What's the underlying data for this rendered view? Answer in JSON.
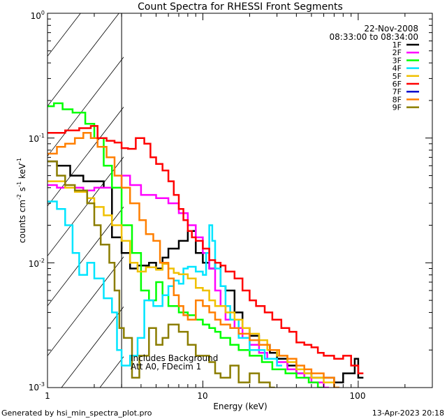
{
  "chart_data": {
    "type": "line",
    "title": "Count Spectra for RHESSI Front Segments",
    "xlabel": "Energy (keV)",
    "ylabel": "counts cm",
    "ylabel_parts": {
      "base": "counts cm",
      "exp1": "-2",
      "s": " s",
      "exp2": "-1",
      "kev": " keV",
      "exp3": "-1"
    },
    "xscale": "log",
    "yscale": "log",
    "xlim": [
      1,
      300
    ],
    "ylim": [
      0.001,
      1
    ],
    "x_ticks": [
      {
        "v": 1,
        "label": "1"
      },
      {
        "v": 10,
        "label": "10"
      },
      {
        "v": 100,
        "label": "100"
      }
    ],
    "y_ticks": [
      {
        "v": 1,
        "base": "10",
        "exp": "0"
      },
      {
        "v": 0.1,
        "base": "10",
        "exp": "-1"
      },
      {
        "v": 0.01,
        "base": "10",
        "exp": "-2"
      },
      {
        "v": 0.001,
        "base": "10",
        "exp": "-3"
      }
    ],
    "date": "22-Nov-2008",
    "time_range": "08:33:00 to 08:34:00",
    "attenuated_below_kev": 3,
    "annotation_lines": [
      "Includes Background",
      "Att A0, FDecim 1"
    ],
    "series": [
      {
        "name": "1F",
        "color": "#000000",
        "values": [
          [
            1,
            0.065
          ],
          [
            1.15,
            0.06
          ],
          [
            1.4,
            0.05
          ],
          [
            1.7,
            0.045
          ],
          [
            2,
            0.045
          ],
          [
            2.3,
            0.04
          ],
          [
            2.6,
            0.016
          ],
          [
            3,
            0.012
          ],
          [
            3.4,
            0.009
          ],
          [
            3.8,
            0.0095
          ],
          [
            4.5,
            0.01
          ],
          [
            5,
            0.009
          ],
          [
            5.5,
            0.011
          ],
          [
            6,
            0.013
          ],
          [
            7,
            0.015
          ],
          [
            8,
            0.018
          ],
          [
            9,
            0.012
          ],
          [
            10,
            0.01
          ],
          [
            11,
            0.009
          ],
          [
            12,
            0.01
          ],
          [
            13,
            0.0065
          ],
          [
            14,
            0.006
          ],
          [
            16,
            0.004
          ],
          [
            18,
            0.003
          ],
          [
            20,
            0.0026
          ],
          [
            23,
            0.0022
          ],
          [
            27,
            0.0019
          ],
          [
            30,
            0.0017
          ],
          [
            35,
            0.0015
          ],
          [
            40,
            0.0013
          ],
          [
            50,
            0.0012
          ],
          [
            60,
            0.0012
          ],
          [
            70,
            0.0011
          ],
          [
            80,
            0.0013
          ],
          [
            95,
            0.0017
          ],
          [
            100,
            0.0012
          ]
        ]
      },
      {
        "name": "2F",
        "color": "#ff00ff",
        "values": [
          [
            1,
            0.042
          ],
          [
            1.15,
            0.04
          ],
          [
            1.4,
            0.04
          ],
          [
            1.7,
            0.038
          ],
          [
            2,
            0.04
          ],
          [
            2.5,
            0.04
          ],
          [
            3,
            0.05
          ],
          [
            3.4,
            0.042
          ],
          [
            4,
            0.035
          ],
          [
            5,
            0.033
          ],
          [
            6,
            0.03
          ],
          [
            7,
            0.025
          ],
          [
            8,
            0.02
          ],
          [
            9,
            0.016
          ],
          [
            10,
            0.012
          ],
          [
            11,
            0.009
          ],
          [
            12,
            0.006
          ],
          [
            13,
            0.0045
          ],
          [
            14,
            0.0035
          ],
          [
            16,
            0.003
          ],
          [
            18,
            0.0025
          ],
          [
            20,
            0.0022
          ],
          [
            23,
            0.0019
          ],
          [
            26,
            0.0017
          ],
          [
            30,
            0.0016
          ],
          [
            35,
            0.0014
          ],
          [
            40,
            0.0013
          ],
          [
            45,
            0.0012
          ],
          [
            50,
            0.0011
          ],
          [
            60,
            0.001
          ]
        ]
      },
      {
        "name": "3F",
        "color": "#00ff00",
        "values": [
          [
            1,
            0.18
          ],
          [
            1.1,
            0.19
          ],
          [
            1.25,
            0.17
          ],
          [
            1.45,
            0.16
          ],
          [
            1.75,
            0.13
          ],
          [
            2,
            0.1
          ],
          [
            2.3,
            0.06
          ],
          [
            2.6,
            0.04
          ],
          [
            3,
            0.02
          ],
          [
            3.5,
            0.012
          ],
          [
            4,
            0.006
          ],
          [
            4.5,
            0.005
          ],
          [
            5,
            0.007
          ],
          [
            5.5,
            0.0055
          ],
          [
            6,
            0.0045
          ],
          [
            7,
            0.004
          ],
          [
            8,
            0.0038
          ],
          [
            9,
            0.0035
          ],
          [
            10,
            0.0032
          ],
          [
            11,
            0.003
          ],
          [
            12,
            0.0028
          ],
          [
            13,
            0.0025
          ],
          [
            15,
            0.0022
          ],
          [
            17,
            0.002
          ],
          [
            20,
            0.0018
          ],
          [
            24,
            0.0016
          ],
          [
            28,
            0.0014
          ],
          [
            34,
            0.0013
          ],
          [
            40,
            0.0012
          ],
          [
            48,
            0.0011
          ],
          [
            55,
            0.001
          ]
        ]
      },
      {
        "name": "4F",
        "color": "#00e5ff",
        "values": [
          [
            1,
            0.031
          ],
          [
            1.15,
            0.027
          ],
          [
            1.3,
            0.02
          ],
          [
            1.45,
            0.012
          ],
          [
            1.6,
            0.008
          ],
          [
            1.8,
            0.01
          ],
          [
            2,
            0.0075
          ],
          [
            2.3,
            0.0052
          ],
          [
            2.6,
            0.004
          ],
          [
            2.8,
            0.002
          ],
          [
            3,
            0.0015
          ],
          [
            3.4,
            0.0018
          ],
          [
            3.8,
            0.0025
          ],
          [
            4.2,
            0.005
          ],
          [
            4.8,
            0.0045
          ],
          [
            5.5,
            0.0055
          ],
          [
            6,
            0.0065
          ],
          [
            6.5,
            0.0072
          ],
          [
            7,
            0.0068
          ],
          [
            7.5,
            0.009
          ],
          [
            8,
            0.0093
          ],
          [
            9,
            0.0085
          ],
          [
            10,
            0.008
          ],
          [
            10.5,
            0.012
          ],
          [
            11,
            0.02
          ],
          [
            11.5,
            0.015
          ],
          [
            12,
            0.009
          ],
          [
            13,
            0.0065
          ],
          [
            14,
            0.0045
          ],
          [
            15,
            0.0035
          ],
          [
            17,
            0.0025
          ],
          [
            20,
            0.002
          ],
          [
            25,
            0.0017
          ],
          [
            30,
            0.0015
          ]
        ]
      },
      {
        "name": "5F",
        "color": "#f0c000",
        "values": [
          [
            1,
            0.045
          ],
          [
            1.15,
            0.045
          ],
          [
            1.3,
            0.04
          ],
          [
            1.5,
            0.037
          ],
          [
            1.8,
            0.033
          ],
          [
            2,
            0.028
          ],
          [
            2.3,
            0.024
          ],
          [
            2.6,
            0.02
          ],
          [
            3,
            0.015
          ],
          [
            3.4,
            0.01
          ],
          [
            3.8,
            0.0085
          ],
          [
            4.3,
            0.0092
          ],
          [
            5,
            0.0088
          ],
          [
            5.5,
            0.0098
          ],
          [
            6,
            0.009
          ],
          [
            6.5,
            0.0083
          ],
          [
            7,
            0.0081
          ],
          [
            8,
            0.0075
          ],
          [
            9,
            0.0063
          ],
          [
            10,
            0.006
          ],
          [
            11,
            0.005
          ],
          [
            12,
            0.0045
          ],
          [
            14,
            0.004
          ],
          [
            16,
            0.0035
          ],
          [
            18,
            0.003
          ],
          [
            20,
            0.0027
          ],
          [
            23,
            0.0024
          ],
          [
            26,
            0.002
          ],
          [
            30,
            0.0018
          ],
          [
            35,
            0.0016
          ],
          [
            40,
            0.0014
          ],
          [
            45,
            0.0013
          ],
          [
            50,
            0.0012
          ],
          [
            60,
            0.0011
          ],
          [
            70,
            0.001
          ]
        ]
      },
      {
        "name": "6F",
        "color": "#ff0000",
        "values": [
          [
            1,
            0.11
          ],
          [
            1.1,
            0.11
          ],
          [
            1.3,
            0.115
          ],
          [
            1.6,
            0.12
          ],
          [
            1.9,
            0.125
          ],
          [
            2.1,
            0.1
          ],
          [
            2.4,
            0.095
          ],
          [
            2.7,
            0.092
          ],
          [
            3,
            0.083
          ],
          [
            3.3,
            0.082
          ],
          [
            3.7,
            0.1
          ],
          [
            4.2,
            0.09
          ],
          [
            4.6,
            0.07
          ],
          [
            5,
            0.062
          ],
          [
            5.5,
            0.055
          ],
          [
            6,
            0.045
          ],
          [
            6.5,
            0.035
          ],
          [
            7,
            0.027
          ],
          [
            7.5,
            0.022
          ],
          [
            8,
            0.018
          ],
          [
            8.5,
            0.016
          ],
          [
            9,
            0.015
          ],
          [
            10,
            0.013
          ],
          [
            11,
            0.0105
          ],
          [
            12,
            0.01
          ],
          [
            13,
            0.0095
          ],
          [
            14,
            0.0085
          ],
          [
            16,
            0.0075
          ],
          [
            18,
            0.006
          ],
          [
            20,
            0.005
          ],
          [
            22,
            0.0045
          ],
          [
            25,
            0.004
          ],
          [
            28,
            0.0035
          ],
          [
            32,
            0.003
          ],
          [
            36,
            0.0028
          ],
          [
            40,
            0.0023
          ],
          [
            45,
            0.0022
          ],
          [
            50,
            0.0021
          ],
          [
            55,
            0.0019
          ],
          [
            60,
            0.0018
          ],
          [
            70,
            0.0017
          ],
          [
            80,
            0.0018
          ],
          [
            90,
            0.0015
          ],
          [
            100,
            0.0013
          ]
        ]
      },
      {
        "name": "7F",
        "color": "#0000cc",
        "values": []
      },
      {
        "name": "8F",
        "color": "#ff7f00",
        "values": [
          [
            1,
            0.075
          ],
          [
            1.15,
            0.085
          ],
          [
            1.3,
            0.09
          ],
          [
            1.5,
            0.1
          ],
          [
            1.7,
            0.11
          ],
          [
            1.9,
            0.1
          ],
          [
            2.1,
            0.085
          ],
          [
            2.4,
            0.07
          ],
          [
            2.7,
            0.05
          ],
          [
            3,
            0.04
          ],
          [
            3.4,
            0.03
          ],
          [
            3.9,
            0.022
          ],
          [
            4.3,
            0.017
          ],
          [
            4.8,
            0.015
          ],
          [
            5.3,
            0.01
          ],
          [
            6,
            0.0075
          ],
          [
            6.5,
            0.0055
          ],
          [
            7,
            0.0045
          ],
          [
            7.5,
            0.0038
          ],
          [
            8,
            0.0035
          ],
          [
            9,
            0.005
          ],
          [
            10,
            0.0045
          ],
          [
            11,
            0.004
          ],
          [
            12,
            0.0035
          ],
          [
            13,
            0.0032
          ],
          [
            15,
            0.003
          ],
          [
            17,
            0.0027
          ],
          [
            20,
            0.0024
          ],
          [
            23,
            0.0022
          ],
          [
            27,
            0.002
          ],
          [
            31,
            0.0018
          ],
          [
            35,
            0.0017
          ],
          [
            40,
            0.0015
          ],
          [
            45,
            0.0014
          ],
          [
            50,
            0.0013
          ],
          [
            60,
            0.0012
          ],
          [
            70,
            0.001
          ]
        ]
      },
      {
        "name": "9F",
        "color": "#8b7d00",
        "values": [
          [
            1,
            0.065
          ],
          [
            1.15,
            0.05
          ],
          [
            1.3,
            0.042
          ],
          [
            1.5,
            0.038
          ],
          [
            1.8,
            0.03
          ],
          [
            2,
            0.02
          ],
          [
            2.2,
            0.014
          ],
          [
            2.5,
            0.01
          ],
          [
            2.7,
            0.006
          ],
          [
            2.9,
            0.003
          ],
          [
            3.1,
            0.0025
          ],
          [
            3.5,
            0.0012
          ],
          [
            3.9,
            0.0018
          ],
          [
            4.5,
            0.003
          ],
          [
            5,
            0.0022
          ],
          [
            5.5,
            0.0025
          ],
          [
            6,
            0.0032
          ],
          [
            7,
            0.0028
          ],
          [
            8,
            0.0022
          ],
          [
            9,
            0.0018
          ],
          [
            10,
            0.0018
          ],
          [
            11,
            0.0016
          ],
          [
            12,
            0.0013
          ],
          [
            13,
            0.0012
          ],
          [
            15,
            0.0015
          ],
          [
            17,
            0.0011
          ],
          [
            20,
            0.0013
          ],
          [
            23,
            0.0011
          ],
          [
            27,
            0.001
          ]
        ]
      }
    ]
  },
  "footer": {
    "generated_by": "Generated by hsi_min_spectra_plot.pro",
    "timestamp": "13-Apr-2023 20:18"
  }
}
